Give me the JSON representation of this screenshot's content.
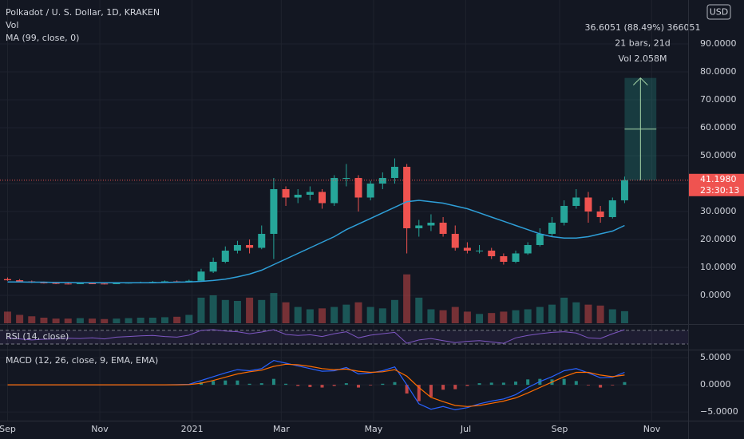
{
  "chart_data": {
    "type": "candlestick",
    "title": "Polkadot / U. S. Dollar, 1D, KRAKEN",
    "vol_label": "Vol",
    "ma_label": "MA (99, close, 0)",
    "currency": "USD",
    "up_color": "#26a69a",
    "down_color": "#ef5350",
    "ma_color": "#2e9fd8",
    "grid": true,
    "x": [
      0,
      8,
      16,
      24,
      32,
      40,
      48,
      56,
      64,
      72,
      80,
      88,
      96,
      104,
      112,
      120,
      128,
      136,
      144,
      152,
      160,
      168,
      176,
      184,
      192,
      200,
      208,
      216,
      224,
      232,
      240,
      248,
      256,
      264,
      272,
      280,
      288,
      296,
      304,
      312,
      320,
      328,
      336,
      344,
      352,
      360,
      368,
      376,
      384,
      392,
      400,
      408
    ],
    "open": [
      5.8,
      5.4,
      5.0,
      4.6,
      4.4,
      4.2,
      4.1,
      4.3,
      4.2,
      4.1,
      4.3,
      4.5,
      4.6,
      4.8,
      5.0,
      4.9,
      5.2,
      8.5,
      12,
      16,
      18,
      17,
      22,
      38,
      35,
      36,
      37,
      33,
      42,
      42,
      35,
      40,
      42,
      46,
      24,
      25,
      26,
      22,
      17,
      16,
      16,
      14,
      12,
      15,
      18,
      22,
      26,
      32,
      35,
      30,
      28,
      34
    ],
    "high": [
      6.4,
      5.8,
      5.3,
      4.9,
      4.7,
      4.5,
      4.6,
      4.5,
      4.4,
      4.5,
      4.7,
      4.9,
      5.1,
      5.3,
      5.3,
      5.6,
      9.5,
      13.5,
      17.5,
      19.5,
      20,
      25,
      42,
      39,
      38,
      39,
      38,
      43,
      47,
      43,
      41,
      44,
      49,
      47,
      27,
      29,
      28,
      25,
      19,
      18,
      17,
      15,
      16,
      19,
      24,
      28,
      34,
      38,
      37,
      32,
      35,
      42.5
    ],
    "low": [
      5.2,
      4.8,
      4.4,
      4.2,
      4.0,
      3.9,
      4.0,
      4.0,
      3.9,
      4.0,
      4.2,
      4.4,
      4.5,
      4.7,
      4.7,
      4.8,
      5.0,
      8.0,
      11.5,
      15,
      15,
      16.5,
      13,
      32,
      33,
      34,
      31,
      32,
      39,
      30,
      34,
      38,
      40,
      15,
      21,
      23,
      21,
      16,
      15,
      15,
      13,
      11,
      11.5,
      14.5,
      17.5,
      21,
      25,
      31,
      26,
      26,
      27.5,
      33
    ],
    "close": [
      5.4,
      5.0,
      4.6,
      4.4,
      4.2,
      4.1,
      4.3,
      4.2,
      4.1,
      4.3,
      4.5,
      4.6,
      4.8,
      5.0,
      4.9,
      5.2,
      8.5,
      12,
      16,
      18,
      17,
      22,
      38,
      35,
      36,
      37,
      33,
      42,
      42,
      35,
      40,
      42,
      46,
      24,
      25,
      26,
      22,
      17,
      16,
      16,
      14,
      12,
      15,
      18,
      22,
      26,
      32,
      35,
      30,
      28,
      34,
      41.198
    ],
    "volume": [
      2.5,
      1.8,
      1.5,
      1.2,
      1.0,
      1.0,
      1.1,
      1.0,
      0.9,
      1.0,
      1.1,
      1.2,
      1.2,
      1.3,
      1.4,
      1.8,
      5.5,
      6.0,
      5.0,
      4.8,
      5.5,
      5.0,
      6.5,
      4.5,
      3.5,
      3.0,
      3.2,
      3.5,
      4.0,
      4.5,
      3.5,
      3.2,
      5.0,
      10.5,
      5.5,
      3.0,
      2.8,
      3.5,
      2.5,
      2.0,
      2.2,
      2.5,
      2.8,
      3.0,
      3.5,
      4.0,
      5.5,
      4.5,
      4.0,
      3.8,
      3.0,
      2.6
    ],
    "volume_lim": [
      0,
      12
    ],
    "ma": [
      4.8,
      4.8,
      4.7,
      4.7,
      4.6,
      4.6,
      4.5,
      4.5,
      4.5,
      4.5,
      4.5,
      4.5,
      4.5,
      4.6,
      4.7,
      4.8,
      5.0,
      5.3,
      5.8,
      6.6,
      7.6,
      9.0,
      11,
      13,
      15,
      17,
      19,
      21,
      23.5,
      25.5,
      27.5,
      29.5,
      31.5,
      33.5,
      34,
      33.5,
      33,
      32,
      31,
      29.5,
      28,
      26.5,
      25,
      23.5,
      22,
      21,
      20.5,
      20.5,
      21,
      22,
      23,
      25
    ],
    "xlim": [
      -5,
      450
    ],
    "xticks": [
      {
        "value": 0,
        "label": "Sep"
      },
      {
        "value": 61,
        "label": "Nov"
      },
      {
        "value": 122,
        "label": "2021"
      },
      {
        "value": 181,
        "label": "Mar"
      },
      {
        "value": 242,
        "label": "May"
      },
      {
        "value": 303,
        "label": "Jul"
      },
      {
        "value": 365,
        "label": "Sep"
      },
      {
        "value": 426,
        "label": "Nov"
      }
    ],
    "ylim": [
      -10,
      105.7
    ],
    "yticks": [
      {
        "value": 0,
        "label": "0.0000"
      },
      {
        "value": 10,
        "label": "10.0000"
      },
      {
        "value": 20,
        "label": "20.0000"
      },
      {
        "value": 30,
        "label": "30.0000"
      },
      {
        "value": 40,
        "label": "40.0000"
      },
      {
        "value": 50,
        "label": "50.0000"
      },
      {
        "value": 60,
        "label": "60.0000"
      },
      {
        "value": 70,
        "label": "70.0000"
      },
      {
        "value": 80,
        "label": "80.0000"
      },
      {
        "value": 90,
        "label": "90.0000"
      }
    ],
    "last_price": {
      "value": 41.198,
      "label": "41.1980"
    },
    "countdown": "23:30:13",
    "measure": {
      "x": [
        408,
        429
      ],
      "y": [
        41.198,
        77.8031
      ],
      "lines": [
        "36.6051 (88.49%) 366051",
        "21 bars, 21d",
        "Vol 2.058M"
      ]
    },
    "rsi": {
      "title": "RSI (14, close)",
      "color": "#7e57c2",
      "ylim": [
        16,
        86
      ],
      "bands": [
        70,
        30
      ],
      "values": [
        48,
        45,
        42,
        44,
        45,
        47,
        46,
        48,
        45,
        50,
        52,
        54,
        55,
        52,
        50,
        56,
        70,
        72,
        68,
        66,
        60,
        65,
        72,
        58,
        55,
        57,
        52,
        60,
        66,
        48,
        56,
        60,
        64,
        32,
        42,
        46,
        40,
        34,
        38,
        40,
        36,
        32,
        48,
        55,
        60,
        64,
        66,
        62,
        48,
        46,
        60,
        72
      ]
    },
    "macd": {
      "title": "MACD (12, 26, close, 9, EMA, EMA)",
      "ylim": [
        -6.6,
        6.2
      ],
      "yticks": [
        {
          "value": 5,
          "label": "5.0000"
        },
        {
          "value": 0,
          "label": "0.0000"
        },
        {
          "value": -5,
          "label": "−5.0000"
        }
      ],
      "series": [
        {
          "color": "#2962ff",
          "values": [
            0,
            0,
            0,
            0,
            0,
            0,
            0,
            0,
            0,
            0,
            0,
            0,
            0,
            0,
            0.05,
            0.1,
            0.8,
            1.5,
            2.2,
            2.8,
            2.6,
            3.0,
            4.5,
            4.0,
            3.5,
            3.0,
            2.5,
            2.6,
            3.2,
            2.0,
            2.2,
            2.6,
            3.3,
            0,
            -3.5,
            -4.5,
            -4.0,
            -4.6,
            -4.2,
            -3.5,
            -3.0,
            -2.6,
            -1.8,
            -0.5,
            0.6,
            1.5,
            2.6,
            3.0,
            2.2,
            1.3,
            1.4,
            2.3
          ]
        },
        {
          "color": "#ff6d00",
          "values": [
            0,
            0,
            0,
            0,
            0,
            0,
            0,
            0,
            0,
            0,
            0,
            0,
            0,
            0,
            0,
            0.05,
            0.3,
            0.8,
            1.4,
            2.0,
            2.4,
            2.7,
            3.4,
            3.8,
            3.7,
            3.4,
            3.0,
            2.8,
            2.9,
            2.5,
            2.3,
            2.4,
            2.8,
            1.6,
            -0.5,
            -2.3,
            -3.1,
            -3.8,
            -4.0,
            -3.8,
            -3.4,
            -3.0,
            -2.4,
            -1.5,
            -0.5,
            0.5,
            1.5,
            2.3,
            2.3,
            1.8,
            1.5,
            1.8
          ]
        }
      ],
      "histogram": [
        0,
        0,
        0,
        0,
        0,
        0,
        0,
        0,
        0,
        0,
        0,
        0,
        0,
        0,
        0.05,
        0.05,
        0.5,
        0.7,
        0.8,
        0.8,
        0.2,
        0.3,
        1.1,
        0.2,
        -0.2,
        -0.4,
        -0.5,
        -0.2,
        0.3,
        -0.5,
        -0.1,
        0.2,
        0.5,
        -1.6,
        -3.0,
        -2.2,
        -0.9,
        -0.8,
        -0.2,
        0.3,
        0.4,
        0.4,
        0.6,
        1.0,
        1.1,
        1.0,
        1.1,
        0.7,
        -0.1,
        -0.5,
        -0.1,
        0.5
      ]
    }
  }
}
